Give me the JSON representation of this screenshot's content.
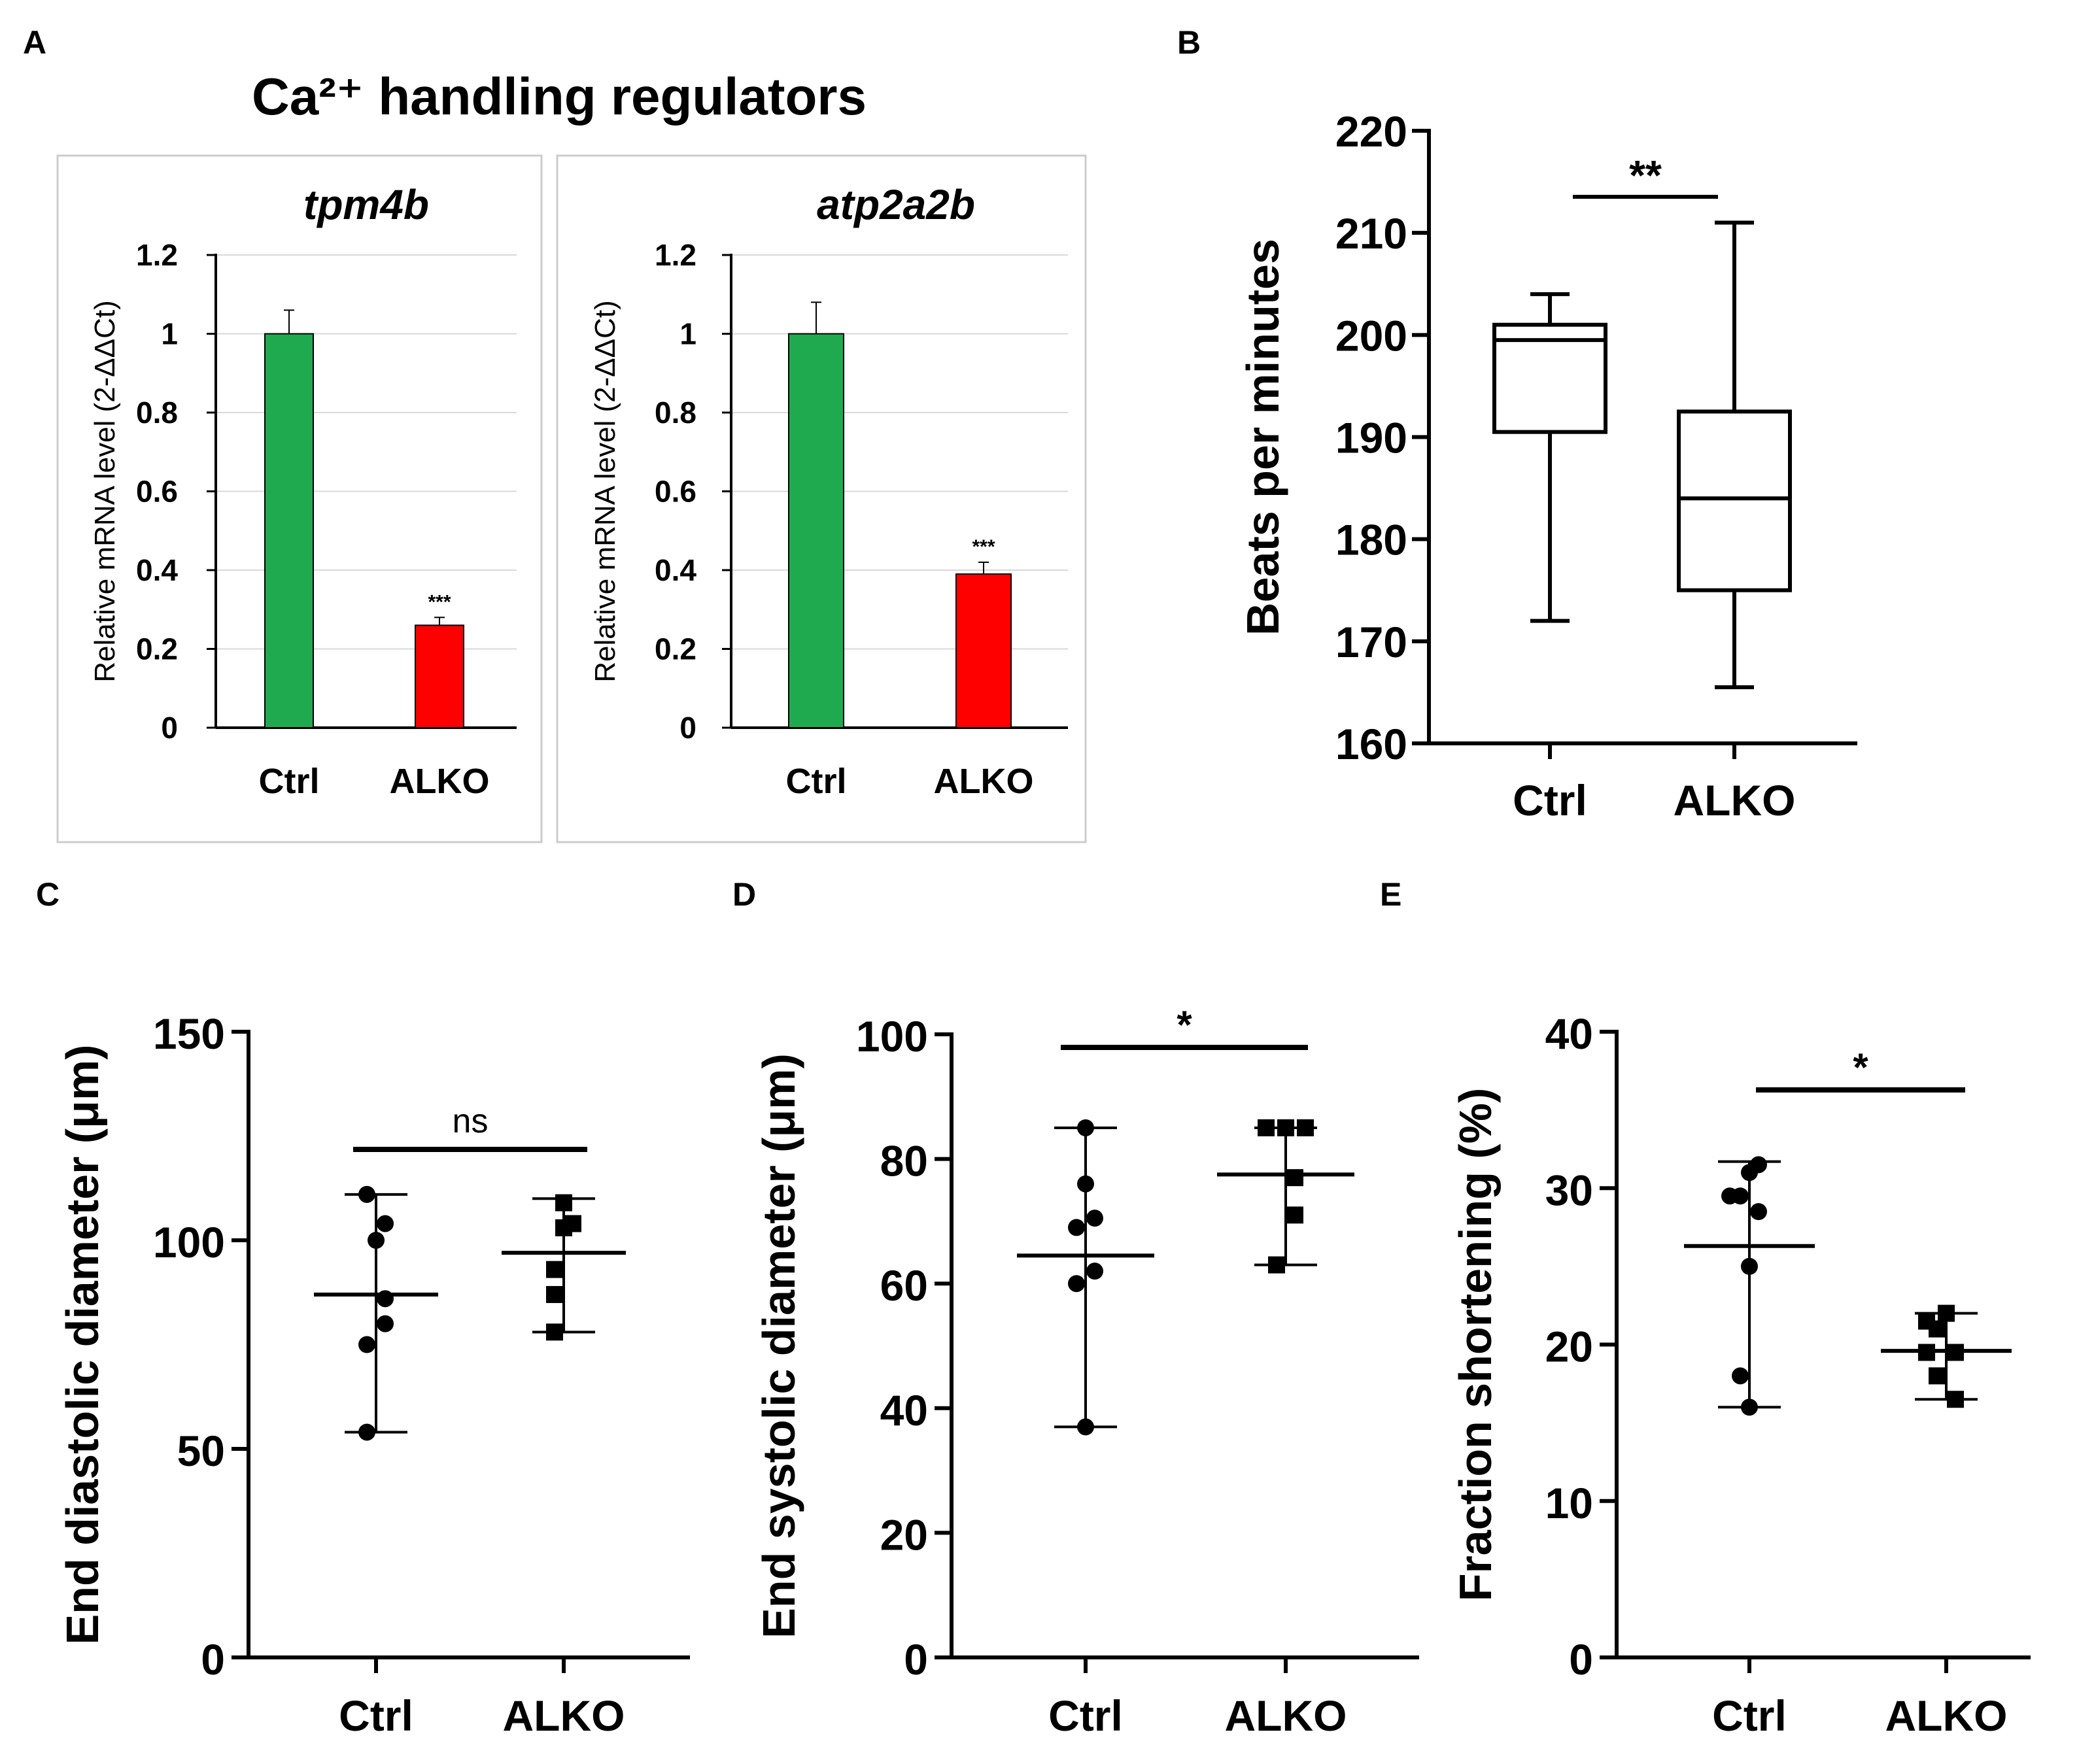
{
  "figure": {
    "panel_labels": [
      "A",
      "B",
      "C",
      "D",
      "E"
    ],
    "panel_a_title": "Ca²⁺ handling regulators"
  },
  "colors": {
    "ctrl_bar": "#1faa4f",
    "alko_bar": "#ff0000",
    "ink": "#000000",
    "grid": "#d9d9d9",
    "frame": "#cccccc"
  },
  "chart_data": [
    {
      "panel": "A",
      "type": "bar",
      "title": "tpm4b",
      "ylabel": "Relative mRNA level (2-ΔΔCt)",
      "categories": [
        "Ctrl",
        "ALKO"
      ],
      "values": [
        1.0,
        0.26
      ],
      "errors": [
        0.06,
        0.02
      ],
      "annotations": [
        "",
        "***"
      ],
      "ylim": [
        0,
        1.2
      ],
      "yticks": [
        0,
        0.2,
        0.4,
        0.6,
        0.8,
        1,
        1.2
      ],
      "ytick_labels": [
        "0",
        "0.2",
        "0.4",
        "0.6",
        "0.8",
        "1",
        "1.2"
      ],
      "grid": true
    },
    {
      "panel": "A",
      "type": "bar",
      "title": "atp2a2b",
      "ylabel": "Relative mRNA level (2-ΔΔCt)",
      "categories": [
        "Ctrl",
        "ALKO"
      ],
      "values": [
        1.0,
        0.39
      ],
      "errors": [
        0.08,
        0.03
      ],
      "annotations": [
        "",
        "***"
      ],
      "ylim": [
        0,
        1.2
      ],
      "yticks": [
        0,
        0.2,
        0.4,
        0.6,
        0.8,
        1,
        1.2
      ],
      "ytick_labels": [
        "0",
        "0.2",
        "0.4",
        "0.6",
        "0.8",
        "1",
        "1.2"
      ],
      "grid": true
    },
    {
      "panel": "B",
      "type": "box",
      "ylabel": "Beats per minutes",
      "categories": [
        "Ctrl",
        "ALKO"
      ],
      "boxes": [
        {
          "min": 172,
          "q1": 190.5,
          "median": 199.5,
          "q3": 201,
          "max": 204
        },
        {
          "min": 165.5,
          "q1": 175,
          "median": 184,
          "q3": 192.5,
          "max": 211
        }
      ],
      "ylim": [
        160,
        220
      ],
      "yticks": [
        160,
        170,
        180,
        190,
        200,
        210,
        220
      ],
      "significance": "**"
    },
    {
      "panel": "C",
      "type": "scatter",
      "ylabel": "End diastolic diameter (μm)",
      "categories": [
        "Ctrl",
        "ALKO"
      ],
      "series": [
        {
          "name": "Ctrl",
          "marker": "circle",
          "values": [
            111,
            104,
            100,
            86,
            80,
            75,
            54
          ],
          "mean": 87,
          "sd_range": [
            54,
            111
          ]
        },
        {
          "name": "ALKO",
          "marker": "square",
          "values": [
            109,
            104,
            103,
            93,
            87,
            78
          ],
          "mean": 97,
          "sd_range": [
            78,
            110
          ]
        }
      ],
      "ylim": [
        0,
        150
      ],
      "yticks": [
        0,
        50,
        100,
        150
      ],
      "significance": "ns"
    },
    {
      "panel": "D",
      "type": "scatter",
      "ylabel": "End systolic diameter (μm)",
      "categories": [
        "Ctrl",
        "ALKO"
      ],
      "series": [
        {
          "name": "Ctrl",
          "marker": "circle",
          "values": [
            85,
            76,
            70.5,
            69,
            62,
            60,
            37
          ],
          "mean": 64.5,
          "sd_range": [
            37,
            85
          ]
        },
        {
          "name": "ALKO",
          "marker": "square",
          "values": [
            85,
            85,
            85,
            77,
            71,
            63
          ],
          "mean": 77.5,
          "sd_range": [
            63,
            85
          ]
        }
      ],
      "ylim": [
        0,
        100
      ],
      "yticks": [
        0,
        20,
        40,
        60,
        80,
        100
      ],
      "significance": "*"
    },
    {
      "panel": "E",
      "type": "scatter",
      "ylabel": "Fraction shortening (%)",
      "categories": [
        "Ctrl",
        "ALKO"
      ],
      "series": [
        {
          "name": "Ctrl",
          "marker": "circle",
          "values": [
            31.5,
            31,
            29.5,
            29.5,
            28.5,
            25,
            18,
            16
          ],
          "mean": 26.3,
          "sd_range": [
            16,
            31.7
          ]
        },
        {
          "name": "ALKO",
          "marker": "square",
          "values": [
            22,
            21.5,
            21,
            19.5,
            19.5,
            18,
            16.5
          ],
          "mean": 19.6,
          "sd_range": [
            16.5,
            22
          ]
        }
      ],
      "ylim": [
        0,
        40
      ],
      "yticks": [
        0,
        10,
        20,
        30,
        40
      ],
      "significance": "*"
    }
  ]
}
